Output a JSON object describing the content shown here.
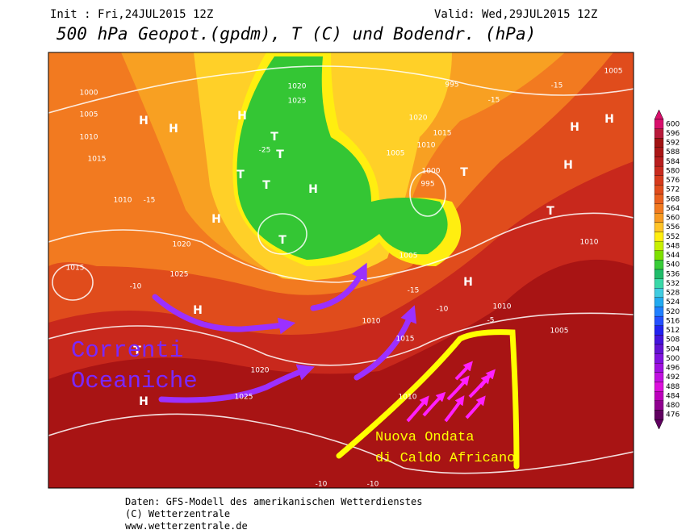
{
  "header": {
    "init": "Init : Fri,24JUL2015 12Z",
    "valid": "Valid: Wed,29JUL2015 12Z",
    "title": "500 hPa Geopot.(gpdm), T (C) und Bodendr. (hPa)"
  },
  "legend": {
    "levels": [
      600,
      596,
      592,
      588,
      584,
      580,
      576,
      572,
      568,
      564,
      560,
      556,
      552,
      548,
      544,
      540,
      536,
      532,
      528,
      524,
      520,
      516,
      512,
      508,
      504,
      500,
      496,
      492,
      488,
      484,
      480,
      476
    ],
    "colors": [
      "#d8106c",
      "#b81a3a",
      "#a01212",
      "#aa1616",
      "#b81e1e",
      "#c82a1e",
      "#d63a1c",
      "#e04c1c",
      "#ea601e",
      "#f27a20",
      "#f89a22",
      "#ffc428",
      "#ffee10",
      "#c8f000",
      "#7ee000",
      "#38cc38",
      "#20bc6a",
      "#3ad8a8",
      "#40cce0",
      "#22aaf0",
      "#2080ff",
      "#2450ff",
      "#2222f0",
      "#4414dc",
      "#6212d2",
      "#8012de",
      "#a010e0",
      "#c010e0",
      "#dc10dc",
      "#bc00bc",
      "#900090",
      "#600060"
    ]
  },
  "map": {
    "labels": [
      "1000",
      "1005",
      "1010",
      "1015",
      "1020",
      "1025",
      "1010",
      "1015",
      "1020",
      "1025",
      "1020",
      "1015",
      "1010",
      "1005",
      "1000",
      "995",
      "995",
      "1005",
      "1010",
      "1015",
      "1020",
      "1025",
      "1010",
      "1010",
      "1005",
      "1010",
      "1005",
      "-10",
      "-15",
      "-25",
      "-15",
      "-15",
      "-10",
      "-15",
      "-5",
      "-10",
      "-10",
      "H",
      "H",
      "H",
      "T",
      "T",
      "T",
      "H",
      "T",
      "H",
      "T",
      "H",
      "H",
      "T",
      "H",
      "T",
      "H",
      "H",
      "T",
      "H"
    ],
    "annotations": {
      "ocean_1": "Correnti",
      "ocean_2": "Oceaniche",
      "heat_1": "Nuova Ondata",
      "heat_2": "di Caldo Africano"
    }
  },
  "footer": {
    "line1": "Daten: GFS-Modell des amerikanischen Wetterdienstes",
    "line2": "(C) Wetterzentrale",
    "line3": "www.wetterzentrale.de"
  }
}
